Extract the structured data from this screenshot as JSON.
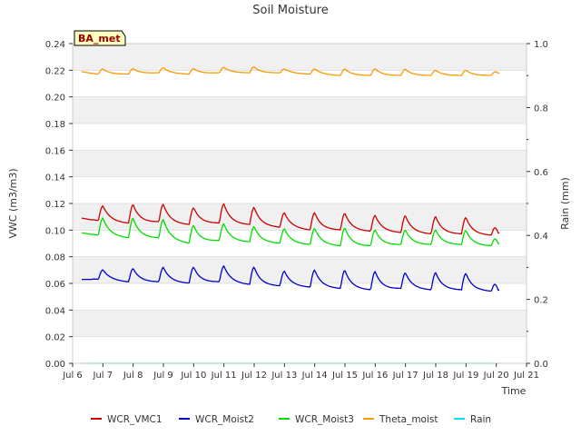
{
  "chart_data": {
    "type": "line",
    "title": "Soil Moisture",
    "xlabel": "Time",
    "ylabel": "VWC (m3/m3)",
    "y2label": "Rain (mm)",
    "station_badge": "BA_met",
    "ylim": [
      0,
      0.24
    ],
    "y2lim": [
      0,
      1.0
    ],
    "xlim": [
      "Jul 6",
      "Jul 21"
    ],
    "x_ticks": [
      "Jul 6",
      "Jul 7",
      "Jul 8",
      "Jul 9",
      "Jul 10",
      "Jul 11",
      "Jul 12",
      "Jul 13",
      "Jul 14",
      "Jul 15",
      "Jul 16",
      "Jul 17",
      "Jul 18",
      "Jul 19",
      "Jul 20",
      "Jul 21"
    ],
    "y_ticks": [
      "0.00",
      "0.02",
      "0.04",
      "0.06",
      "0.08",
      "0.10",
      "0.12",
      "0.14",
      "0.16",
      "0.18",
      "0.20",
      "0.22",
      "0.24"
    ],
    "y2_ticks": [
      "0.0",
      "0.2",
      "0.4",
      "0.6",
      "0.8",
      "1.0"
    ],
    "grid": "horizontal bands",
    "legend_placement": "bottom",
    "x_day_labels": [
      "Jul 6.3",
      "Jul 6.8",
      "Jul 7.8",
      "Jul 8.8",
      "Jul 9.8",
      "Jul 10.8",
      "Jul 11.8",
      "Jul 12.8",
      "Jul 13.8",
      "Jul 14.8",
      "Jul 15.8",
      "Jul 16.8",
      "Jul 17.8",
      "Jul 18.8",
      "Jul 19.8",
      "Jul 20.1"
    ],
    "x": [
      6.3,
      6.8,
      7.8,
      8.8,
      9.8,
      10.8,
      11.8,
      12.8,
      13.8,
      14.8,
      15.8,
      16.8,
      17.8,
      18.8,
      19.8,
      20.1
    ],
    "series": [
      {
        "name": "WCR_VMC1",
        "color": "#cc0000",
        "base": [
          0.109,
          0.107,
          0.105,
          0.106,
          0.104,
          0.105,
          0.104,
          0.102,
          0.1,
          0.1,
          0.099,
          0.098,
          0.097,
          0.097,
          0.096,
          0.098
        ],
        "peak": [
          0.109,
          0.118,
          0.119,
          0.12,
          0.116,
          0.12,
          0.118,
          0.113,
          0.113,
          0.113,
          0.111,
          0.111,
          0.11,
          0.11,
          0.107,
          0.098
        ]
      },
      {
        "name": "WCR_Moist2",
        "color": "#0000cc",
        "base": [
          0.063,
          0.063,
          0.061,
          0.061,
          0.06,
          0.061,
          0.059,
          0.058,
          0.057,
          0.056,
          0.055,
          0.056,
          0.055,
          0.055,
          0.054,
          0.055
        ],
        "peak": [
          0.063,
          0.07,
          0.071,
          0.072,
          0.072,
          0.073,
          0.073,
          0.069,
          0.07,
          0.07,
          0.069,
          0.068,
          0.068,
          0.068,
          0.065,
          0.055
        ]
      },
      {
        "name": "WCR_Moist3",
        "color": "#00dd00",
        "base": [
          0.098,
          0.096,
          0.094,
          0.094,
          0.09,
          0.092,
          0.091,
          0.09,
          0.089,
          0.088,
          0.088,
          0.089,
          0.089,
          0.089,
          0.088,
          0.09
        ],
        "peak": [
          0.098,
          0.109,
          0.109,
          0.109,
          0.103,
          0.105,
          0.103,
          0.101,
          0.101,
          0.102,
          0.1,
          0.1,
          0.1,
          0.1,
          0.098,
          0.09
        ]
      },
      {
        "name": "Theta_moist",
        "color": "#ff9900",
        "base": [
          0.219,
          0.217,
          0.217,
          0.218,
          0.217,
          0.218,
          0.218,
          0.218,
          0.217,
          0.216,
          0.216,
          0.216,
          0.216,
          0.216,
          0.216,
          0.218
        ],
        "peak": [
          0.22,
          0.221,
          0.221,
          0.222,
          0.221,
          0.222,
          0.223,
          0.221,
          0.221,
          0.221,
          0.221,
          0.221,
          0.22,
          0.22,
          0.22,
          0.218
        ]
      },
      {
        "name": "Rain",
        "color": "#00e5ee",
        "base": [
          0,
          0,
          0,
          0,
          0,
          0,
          0,
          0,
          0,
          0,
          0,
          0,
          0,
          0,
          0,
          0
        ],
        "peak": [
          0,
          0,
          0,
          0,
          0,
          0,
          0,
          0,
          0,
          0,
          0,
          0,
          0,
          0,
          0,
          0
        ]
      }
    ]
  }
}
